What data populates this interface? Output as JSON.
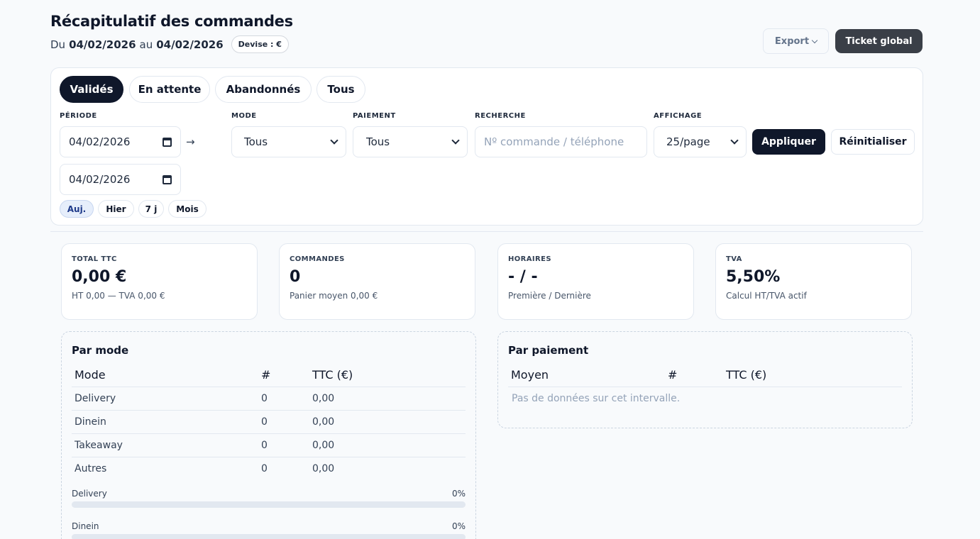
{
  "header": {
    "title": "Récapitulatif des commandes",
    "du": "Du",
    "date_from": "04/02/2026",
    "au": "au",
    "date_to": "04/02/2026",
    "devise": "Devise : €",
    "export_label": "Export",
    "ticket_label": "Ticket global"
  },
  "tabs": [
    "Validés",
    "En attente",
    "Abandonnés",
    "Tous"
  ],
  "filters": {
    "periode_label": "PÉRIODE",
    "start_date": "04/02/2026",
    "end_date": "04/02/2026",
    "arrow": "→",
    "mode_label": "MODE",
    "mode_value": "Tous",
    "paiement_label": "PAIEMENT",
    "paiement_value": "Tous",
    "recherche_label": "RECHERCHE",
    "recherche_placeholder": "Nº commande / téléphone",
    "affichage_label": "AFFICHAGE",
    "affichage_value": "25/page",
    "apply_label": "Appliquer",
    "reset_label": "Réinitialiser",
    "quick": [
      "Auj.",
      "Hier",
      "7 j",
      "Mois"
    ]
  },
  "cards": [
    {
      "label": "TOTAL TTC",
      "value": "0,00 €",
      "sub": "HT 0,00 — TVA 0,00 €"
    },
    {
      "label": "COMMANDES",
      "value": "0",
      "sub": "Panier moyen 0,00 €"
    },
    {
      "label": "HORAIRES",
      "value": "- / -",
      "sub": "Première / Dernière"
    },
    {
      "label": "TVA",
      "value": "5,50%",
      "sub": "Calcul HT/TVA actif"
    }
  ],
  "par_mode": {
    "title": "Par mode",
    "columns": [
      "Mode",
      "#",
      "TTC (€)"
    ],
    "rows": [
      [
        "Delivery",
        "0",
        "0,00"
      ],
      [
        "Dinein",
        "0",
        "0,00"
      ],
      [
        "Takeaway",
        "0",
        "0,00"
      ],
      [
        "Autres",
        "0",
        "0,00"
      ]
    ],
    "bars": [
      {
        "label": "Delivery",
        "percent_text": "0%",
        "percent": 0
      },
      {
        "label": "Dinein",
        "percent_text": "0%",
        "percent": 0
      }
    ]
  },
  "par_paiement": {
    "title": "Par paiement",
    "columns": [
      "Moyen",
      "#",
      "TTC (€)"
    ],
    "empty": "Pas de données sur cet intervalle."
  }
}
